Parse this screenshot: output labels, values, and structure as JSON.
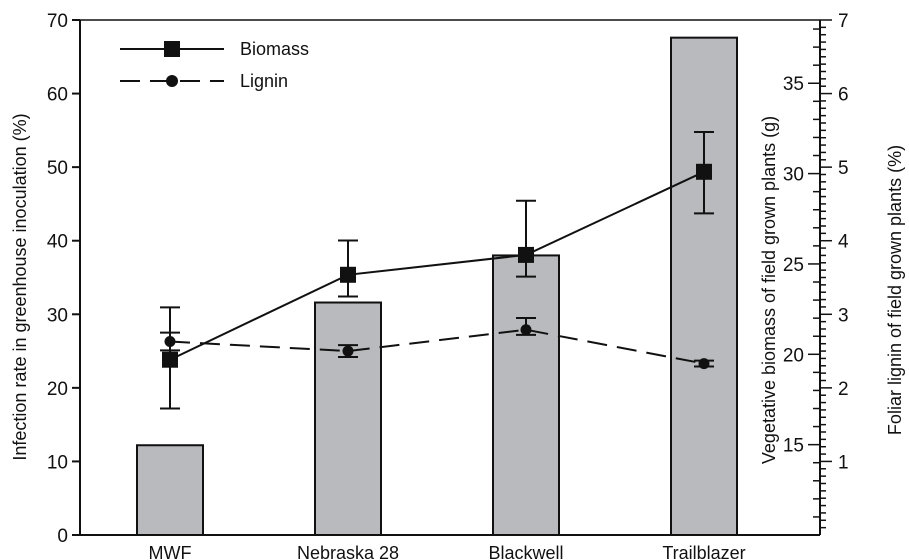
{
  "chart_data": {
    "type": "bar",
    "categories": [
      "MWF",
      "Nebraska 28",
      "Blackwell",
      "Trailblazer"
    ],
    "left_axis": {
      "label": "Infection rate in greenhouse inoculation (%)",
      "ylim": [
        0,
        70
      ],
      "ticks": [
        0,
        10,
        20,
        30,
        40,
        50,
        60,
        70
      ]
    },
    "biomass_axis": {
      "label": "Vegetative biomass of field grown plants (g)",
      "ylim": [
        10,
        38.5
      ],
      "ticks": [
        15,
        20,
        25,
        30,
        35
      ]
    },
    "lignin_axis": {
      "label": "Foliar lignin of field grown plants (%)",
      "ylim": [
        0,
        7
      ],
      "ticks": [
        1,
        2,
        3,
        4,
        5,
        6,
        7
      ]
    },
    "bars": {
      "axis": "left",
      "values": [
        12.2,
        31.6,
        38.0,
        67.6
      ],
      "color": "#b9babd"
    },
    "series": [
      {
        "name": "Biomass",
        "axis": "biomass",
        "style": "solid",
        "marker": "square",
        "values": [
          19.7,
          24.4,
          25.5,
          30.1
        ],
        "err_low": [
          17.0,
          23.2,
          24.3,
          27.8
        ],
        "err_high": [
          22.6,
          26.3,
          28.5,
          32.3
        ]
      },
      {
        "name": "Lignin",
        "axis": "lignin",
        "style": "dashed",
        "marker": "circle",
        "values": [
          2.63,
          2.5,
          2.79,
          2.33
        ],
        "err_low": [
          2.51,
          2.42,
          2.72,
          2.29
        ],
        "err_high": [
          2.75,
          2.58,
          2.95,
          2.37
        ]
      }
    ],
    "legend": {
      "position": "top-left",
      "items": [
        {
          "label": "Biomass",
          "style": "solid",
          "marker": "square"
        },
        {
          "label": "Lignin",
          "style": "dashed",
          "marker": "circle"
        }
      ]
    },
    "grid": false
  }
}
